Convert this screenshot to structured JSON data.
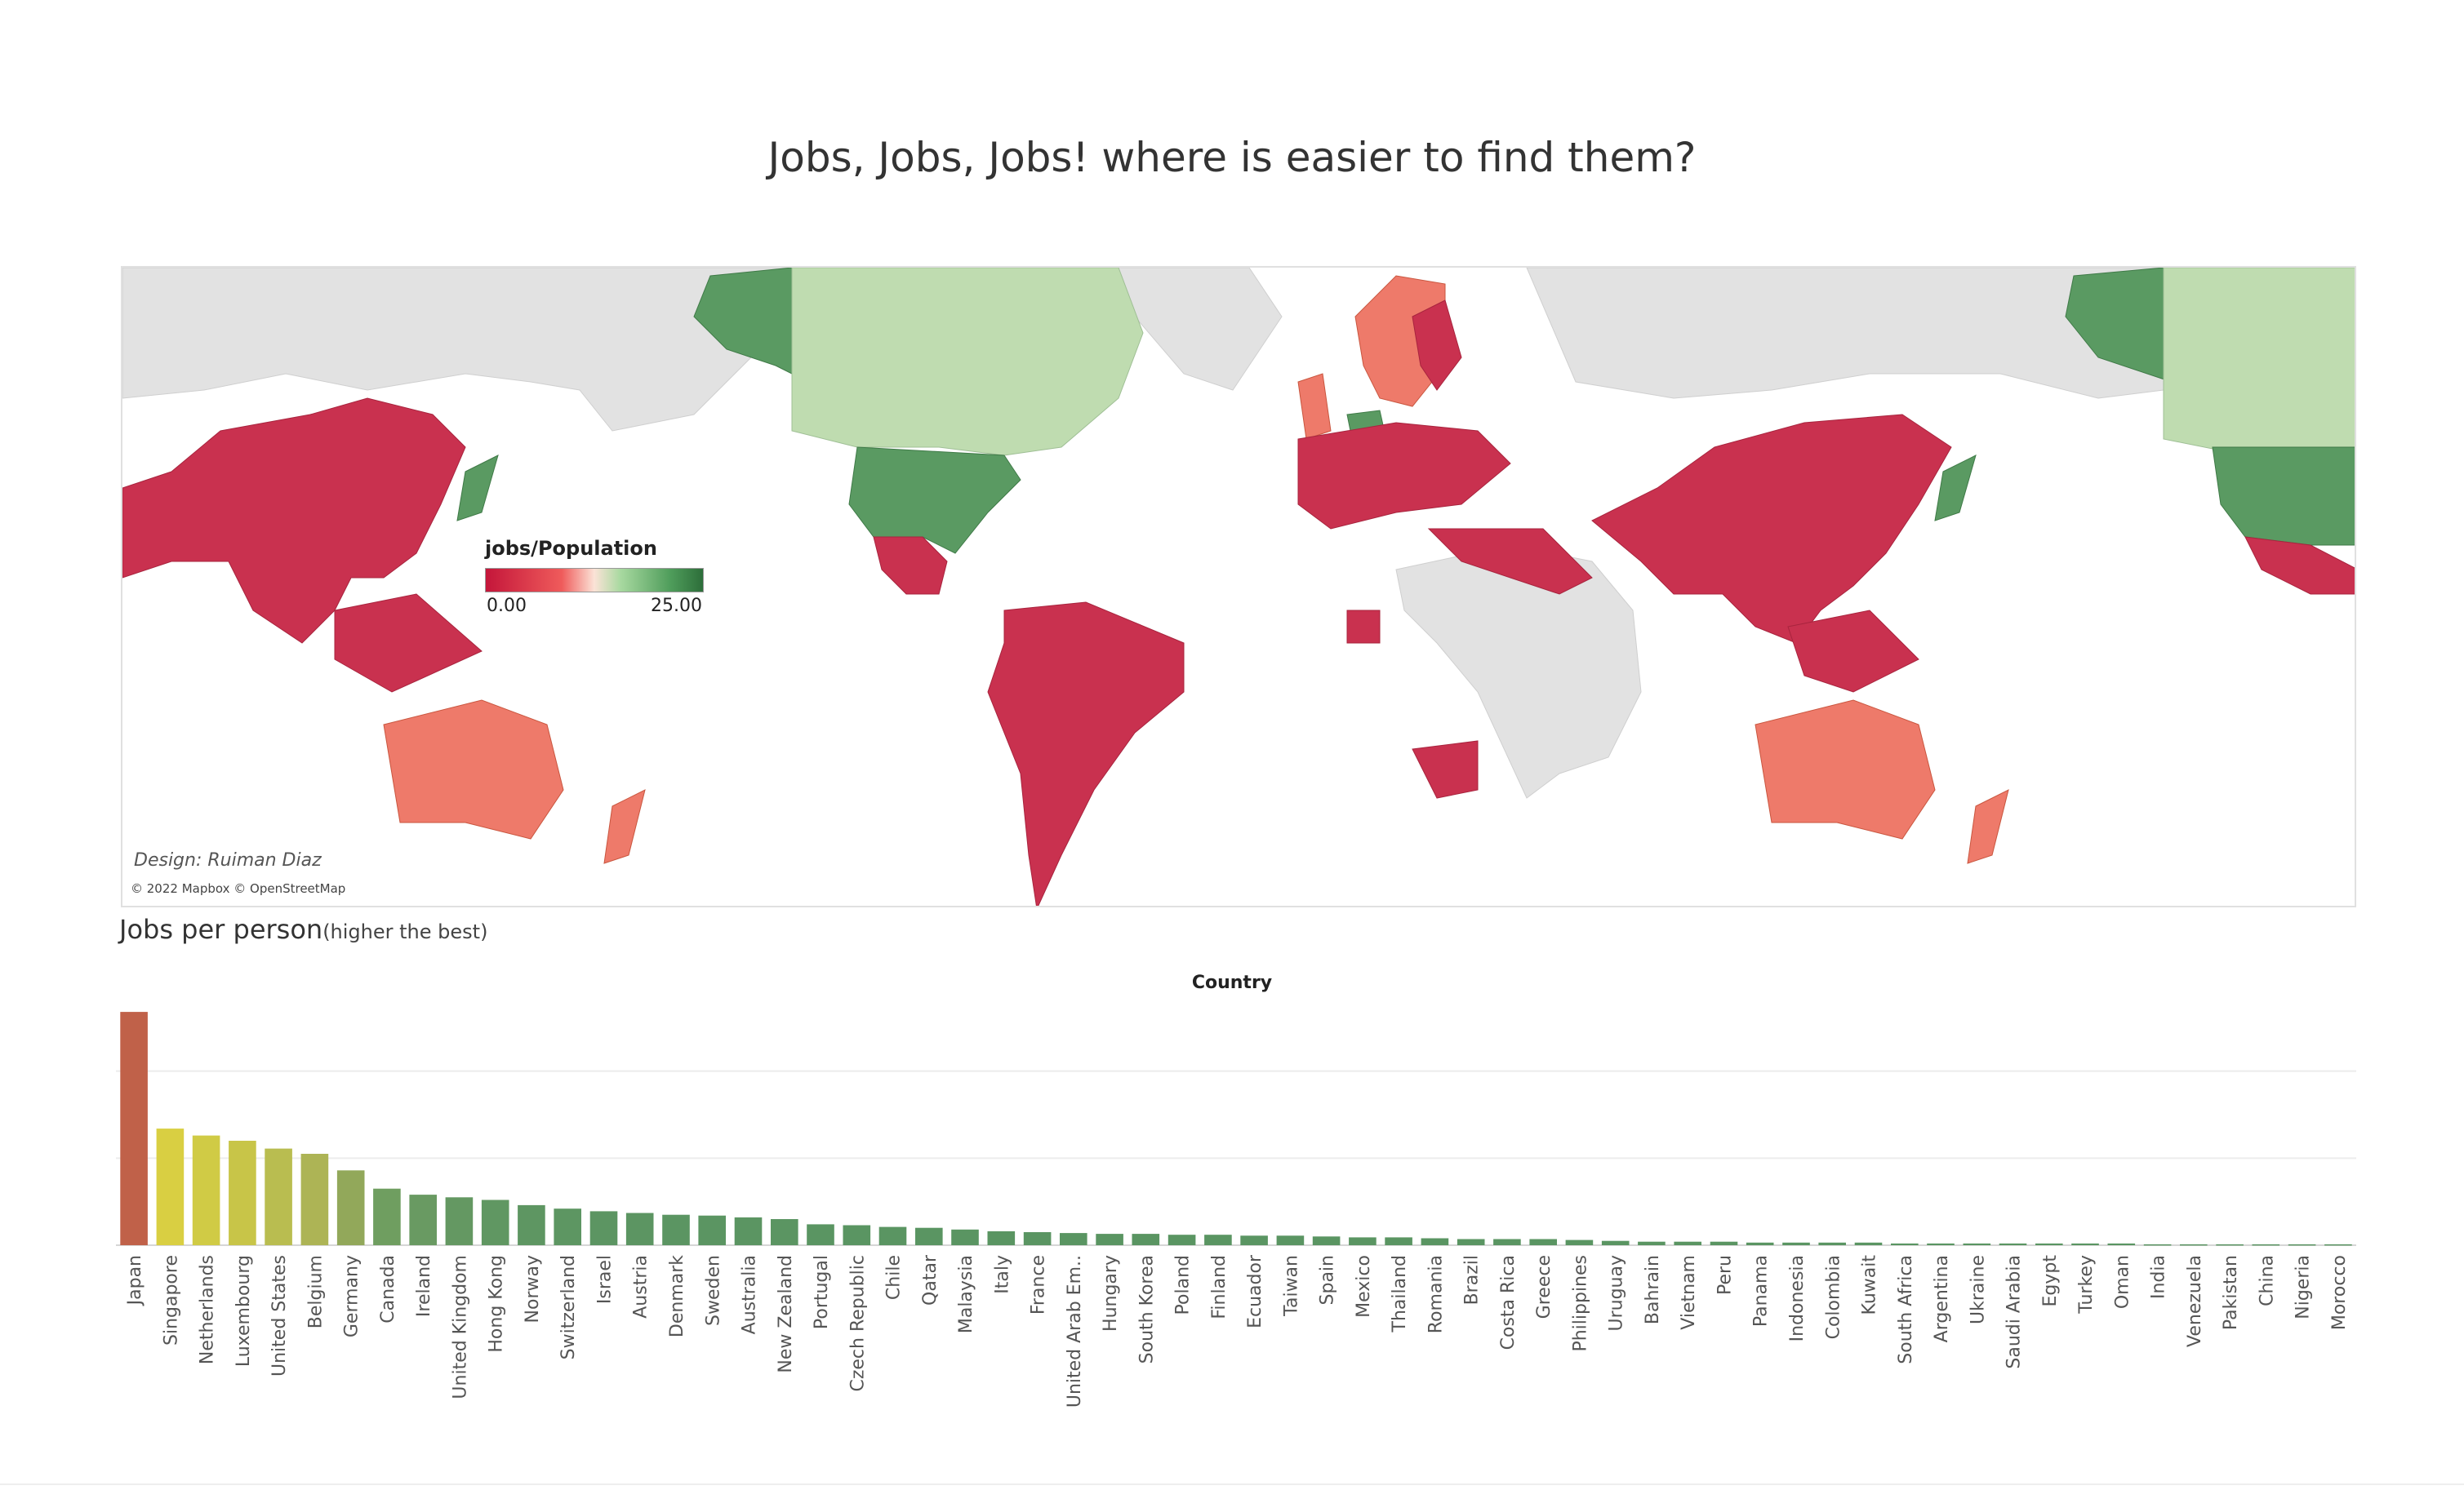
{
  "page": {
    "title": "Jobs, Jobs, Jobs! where is easier to find them?"
  },
  "map": {
    "legend_title": "jobs/Population",
    "legend_min": "0.00",
    "legend_max": "25.00",
    "design_credit": "Design: Ruiman Diaz",
    "attribution": "© 2022 Mapbox © OpenStreetMap",
    "colors": {
      "low": "#c9314f",
      "mid_low": "#ee7a6a",
      "mid_high": "#bfdcb0",
      "high": "#5a9a62",
      "no_data": "#e2e2e2"
    }
  },
  "bar_chart": {
    "title": "Jobs per person",
    "subtitle": "(higher the best)",
    "axis_header": "Country"
  },
  "chart_data": {
    "type": "bar",
    "title": "Jobs per person",
    "subtitle": "(higher the best)",
    "xlabel": "Country",
    "ylabel": "",
    "ylim": [
      0,
      2.7
    ],
    "grid": true,
    "categories": [
      "Japan",
      "Singapore",
      "Netherlands",
      "Luxembourg",
      "United States",
      "Belgium",
      "Germany",
      "Canada",
      "Ireland",
      "United Kingdom",
      "Hong Kong",
      "Norway",
      "Switzerland",
      "Israel",
      "Austria",
      "Denmark",
      "Sweden",
      "Australia",
      "New Zealand",
      "Portugal",
      "Czech Republic",
      "Chile",
      "Qatar",
      "Malaysia",
      "Italy",
      "France",
      "United Arab Em..",
      "Hungary",
      "South Korea",
      "Poland",
      "Finland",
      "Ecuador",
      "Taiwan",
      "Spain",
      "Mexico",
      "Thailand",
      "Romania",
      "Brazil",
      "Costa Rica",
      "Greece",
      "Philippines",
      "Uruguay",
      "Bahrain",
      "Vietnam",
      "Peru",
      "Panama",
      "Indonesia",
      "Colombia",
      "Kuwait",
      "South Africa",
      "Argentina",
      "Ukraine",
      "Saudi Arabia",
      "Egypt",
      "Turkey",
      "Oman",
      "India",
      "Venezuela",
      "Pakistan",
      "China",
      "Nigeria",
      "Morocco"
    ],
    "values": [
      2.68,
      1.34,
      1.26,
      1.2,
      1.11,
      1.05,
      0.86,
      0.65,
      0.58,
      0.55,
      0.52,
      0.46,
      0.42,
      0.39,
      0.37,
      0.35,
      0.34,
      0.32,
      0.3,
      0.24,
      0.23,
      0.21,
      0.2,
      0.18,
      0.16,
      0.15,
      0.14,
      0.13,
      0.13,
      0.12,
      0.12,
      0.11,
      0.11,
      0.1,
      0.09,
      0.09,
      0.08,
      0.07,
      0.07,
      0.07,
      0.06,
      0.05,
      0.04,
      0.04,
      0.04,
      0.03,
      0.03,
      0.03,
      0.03,
      0.02,
      0.02,
      0.02,
      0.02,
      0.02,
      0.02,
      0.02,
      0.01,
      0.01,
      0.01,
      0.01,
      0.01,
      0.01
    ],
    "bar_colors": [
      "#c06149",
      "#d9cf42",
      "#d0cb45",
      "#c8c548",
      "#b9bd50",
      "#adb455",
      "#92a85a",
      "#6f9e60",
      "#699a62",
      "#649862",
      "#609762",
      "#5e9662",
      "#5d9662",
      "#5c9562",
      "#5c9562",
      "#5b9562",
      "#5b9562",
      "#5b9562",
      "#5b9562",
      "#5a9562",
      "#5a9562",
      "#5a9562",
      "#5a9562",
      "#5a9562",
      "#5a9562",
      "#5a9562",
      "#5a9562",
      "#5a9562",
      "#5a9562",
      "#5a9562",
      "#5a9562",
      "#5a9562",
      "#5a9562",
      "#5a9562",
      "#5a9562",
      "#5a9562",
      "#5a9562",
      "#5a9562",
      "#5a9562",
      "#5a9562",
      "#5a9562",
      "#5a9562",
      "#5a9562",
      "#5a9562",
      "#5a9562",
      "#5a9562",
      "#5a9562",
      "#5a9562",
      "#5a9562",
      "#5a9562",
      "#5a9562",
      "#5a9562",
      "#5a9562",
      "#5a9562",
      "#5a9562",
      "#5a9562",
      "#5a9562",
      "#5a9562",
      "#5a9562",
      "#5a9562",
      "#5a9562",
      "#5a9562"
    ]
  }
}
